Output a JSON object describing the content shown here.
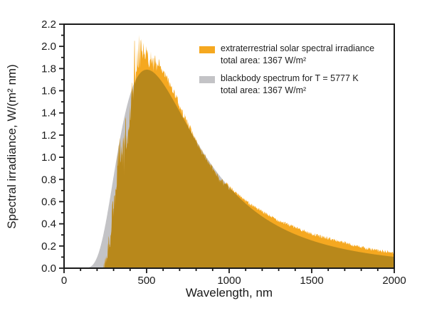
{
  "figure": {
    "xlabel": "Wavelength, nm",
    "ylabel": "Spectral irradiance, W/(m² nm)"
  },
  "legend": {
    "items": [
      {
        "label": "extraterrestrial solar spectral irradiance",
        "sublabel": "total area: 1367 W/m²",
        "color": "#F5A820"
      },
      {
        "label": "blackbody spectrum for T = 5777 K",
        "sublabel": "total area: 1367 W/m²",
        "color": "#C3C3C6"
      }
    ]
  },
  "chart_data": {
    "type": "area",
    "title": "",
    "xlabel": "Wavelength, nm",
    "ylabel": "Spectral irradiance, W/(m² nm)",
    "xlim": [
      0,
      2000
    ],
    "ylim": [
      0,
      2.2
    ],
    "x_major_ticks": [
      0,
      500,
      1000,
      1500,
      2000
    ],
    "x_minor_step": 100,
    "y_major_ticks": [
      0,
      0.2,
      0.4,
      0.6,
      0.8,
      1.0,
      1.2,
      1.4,
      1.6,
      1.8,
      2.0,
      2.2
    ],
    "y_minor_step": 0.1,
    "grid": false,
    "legend_position": "upper-right-inside",
    "colors": {
      "solar": "#F5A820",
      "blackbody": "#C3C3C6",
      "overlap": "#B8881B",
      "axis": "#1a1a1a"
    },
    "series": [
      {
        "name": "extraterrestrial solar spectral irradiance",
        "total_area_W_m2": 1367,
        "style": "jagged-filled-area",
        "envelope_x": [
          238,
          245,
          250,
          255,
          260,
          265,
          270,
          275,
          280,
          285,
          290,
          295,
          300,
          310,
          320,
          330,
          340,
          350,
          360,
          370,
          380,
          390,
          400,
          410,
          420,
          430,
          440,
          450,
          460,
          470,
          480,
          490,
          500,
          510,
          520,
          530,
          540,
          550,
          560,
          570,
          580,
          590,
          600,
          620,
          640,
          660,
          680,
          700,
          720,
          740,
          760,
          780,
          800,
          820,
          840,
          860,
          880,
          900,
          920,
          940,
          960,
          980,
          1000,
          1050,
          1100,
          1150,
          1200,
          1250,
          1300,
          1350,
          1400,
          1450,
          1500,
          1550,
          1600,
          1650,
          1700,
          1750,
          1800,
          1850,
          1900,
          1950,
          2000
        ],
        "envelope_y": [
          0.0,
          0.04,
          0.07,
          0.1,
          0.13,
          0.19,
          0.26,
          0.22,
          0.24,
          0.33,
          0.5,
          0.57,
          0.55,
          0.7,
          0.84,
          1.06,
          1.07,
          1.1,
          1.09,
          1.27,
          1.15,
          1.26,
          1.48,
          1.58,
          1.63,
          1.56,
          1.82,
          1.98,
          2.02,
          2.0,
          2.04,
          1.96,
          1.95,
          1.92,
          1.86,
          1.93,
          1.83,
          1.88,
          1.82,
          1.83,
          1.83,
          1.78,
          1.77,
          1.73,
          1.66,
          1.61,
          1.55,
          1.46,
          1.4,
          1.34,
          1.28,
          1.22,
          1.16,
          1.1,
          1.05,
          1.0,
          0.96,
          0.91,
          0.87,
          0.81,
          0.79,
          0.76,
          0.74,
          0.67,
          0.61,
          0.56,
          0.51,
          0.47,
          0.43,
          0.4,
          0.37,
          0.34,
          0.31,
          0.29,
          0.27,
          0.25,
          0.23,
          0.21,
          0.19,
          0.175,
          0.16,
          0.15,
          0.14
        ],
        "peak_spike": {
          "x": 427,
          "y": 2.17
        },
        "noise_zones": [
          {
            "from": 240,
            "to": 310,
            "amp": 0.06,
            "bias": 0.6
          },
          {
            "from": 310,
            "to": 480,
            "amp": 0.15,
            "bias": 0.6
          },
          {
            "from": 480,
            "to": 580,
            "amp": 0.07,
            "bias": 0.6
          },
          {
            "from": 580,
            "to": 780,
            "amp": 0.035,
            "bias": 0.55
          },
          {
            "from": 780,
            "to": 1020,
            "amp": 0.03,
            "bias": 0.7
          },
          {
            "from": 1020,
            "to": 2000,
            "amp": 0.015,
            "bias": 0.55
          }
        ]
      },
      {
        "name": "blackbody spectrum for T = 5777 K",
        "total_area_W_m2": 1367,
        "T_K": 5777,
        "peak": {
          "x": 502,
          "y": 1.79
        },
        "sample_x": [
          100,
          150,
          175,
          200,
          225,
          250,
          275,
          300,
          325,
          350,
          375,
          400,
          425,
          450,
          475,
          500,
          525,
          550,
          575,
          600,
          625,
          650,
          675,
          700,
          725,
          750,
          775,
          800,
          850,
          900,
          950,
          1000,
          1100,
          1200,
          1300,
          1400,
          1500,
          1600,
          1700,
          1800,
          1900,
          2000
        ],
        "sample_y": [
          0.0,
          0.01,
          0.03,
          0.1,
          0.22,
          0.39,
          0.6,
          0.83,
          1.05,
          1.25,
          1.42,
          1.56,
          1.67,
          1.74,
          1.78,
          1.79,
          1.78,
          1.75,
          1.72,
          1.66,
          1.61,
          1.55,
          1.48,
          1.41,
          1.35,
          1.28,
          1.21,
          1.15,
          1.03,
          0.92,
          0.82,
          0.73,
          0.58,
          0.47,
          0.38,
          0.31,
          0.25,
          0.21,
          0.17,
          0.14,
          0.12,
          0.1
        ]
      }
    ]
  }
}
